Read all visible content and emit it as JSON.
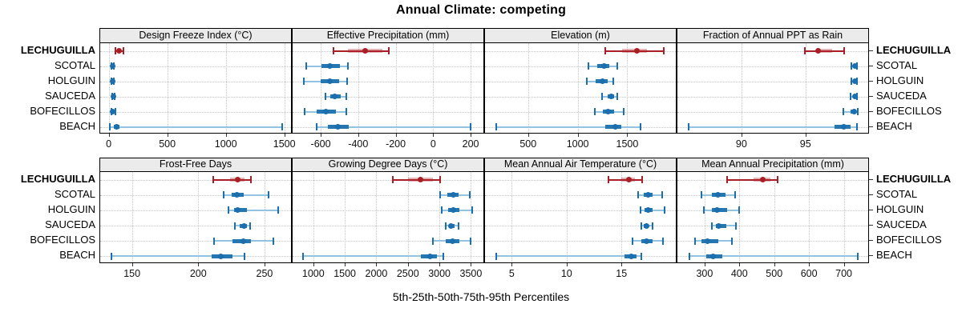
{
  "title": "Annual Climate: competing",
  "caption": "5th-25th-50th-75th-95th Percentiles",
  "categories": [
    "LECHUGUILLA",
    "SCOTAL",
    "HOLGUIN",
    "SAUCEDA",
    "BOFECILLOS",
    "BEACH"
  ],
  "highlighted_category": "LECHUGUILLA",
  "colors": {
    "highlight_solid": "#a82025",
    "highlight_line": "#a82025",
    "highlight_band": "rgba(178,34,43,0.35)",
    "normal_solid": "#1c6fae",
    "normal_line": "#94c2e1",
    "normal_band": "#2577b2",
    "strip_bg": "#ebebeb",
    "grid": "#c6c6c6",
    "border": "#000000",
    "tick": "#333333"
  },
  "chart_data": {
    "type": "dotplot",
    "subtype": "percentile-intervals",
    "percentiles": [
      5,
      25,
      50,
      75,
      95
    ],
    "legend_note": "values per row are [p5, p25, p50, p75, p95]",
    "panels": [
      {
        "title": "Design Freeze Index (°C)",
        "grid_row": 0,
        "grid_col": 0,
        "axis_range": [
          -73,
          1557
        ],
        "ticks": [
          0,
          500,
          1000,
          1500
        ],
        "values": [
          [
            55,
            75,
            89,
            105,
            128
          ],
          [
            24,
            28,
            32,
            36,
            45
          ],
          [
            20,
            26,
            30,
            35,
            45
          ],
          [
            30,
            34,
            38,
            43,
            48
          ],
          [
            22,
            28,
            34,
            42,
            55
          ],
          [
            10,
            45,
            66,
            90,
            1480
          ]
        ]
      },
      {
        "title": "Effective Precipitation (mm)",
        "grid_row": 0,
        "grid_col": 1,
        "axis_range": [
          -750,
          268
        ],
        "ticks": [
          -600,
          -400,
          -200,
          0,
          200
        ],
        "values": [
          [
            -533,
            -457,
            -364,
            -271,
            -237
          ],
          [
            -679,
            -595,
            -550,
            -497,
            -456
          ],
          [
            -691,
            -600,
            -550,
            -500,
            -458
          ],
          [
            -576,
            -548,
            -526,
            -495,
            -462
          ],
          [
            -686,
            -620,
            -573,
            -520,
            -465
          ],
          [
            -621,
            -560,
            -508,
            -450,
            201
          ]
        ]
      },
      {
        "title": "Elevation (m)",
        "grid_row": 0,
        "grid_col": 2,
        "axis_range": [
          65,
          1990
        ],
        "ticks": [
          500,
          1000,
          1500
        ],
        "values": [
          [
            1278,
            1450,
            1594,
            1700,
            1872
          ],
          [
            1112,
            1200,
            1267,
            1320,
            1396
          ],
          [
            1091,
            1180,
            1249,
            1300,
            1358
          ],
          [
            1249,
            1300,
            1339,
            1370,
            1401
          ],
          [
            1177,
            1250,
            1310,
            1370,
            1462
          ],
          [
            179,
            1280,
            1377,
            1440,
            1631
          ]
        ]
      },
      {
        "title": "Fraction of Annual PPT as Rain",
        "grid_row": 0,
        "grid_col": 3,
        "axis_range": [
          85,
          99.9
        ],
        "ticks": [
          90,
          95
        ],
        "values": [
          [
            94.98,
            95.8,
            96.0,
            97.1,
            98.0
          ],
          [
            98.6,
            98.75,
            98.85,
            98.95,
            99.05
          ],
          [
            98.6,
            98.75,
            98.85,
            98.95,
            99.05
          ],
          [
            98.55,
            98.7,
            98.85,
            98.95,
            99.05
          ],
          [
            97.95,
            98.5,
            98.8,
            98.95,
            99.1
          ],
          [
            85.9,
            97.3,
            98.0,
            98.5,
            99.0
          ]
        ]
      },
      {
        "title": "Frost-Free Days",
        "grid_row": 1,
        "grid_col": 0,
        "axis_range": [
          126,
          270
        ],
        "ticks": [
          150,
          200,
          250
        ],
        "values": [
          [
            211.6,
            224,
            230,
            235,
            239.6
          ],
          [
            219.4,
            225,
            229,
            234,
            253
          ],
          [
            222.8,
            227,
            230,
            237,
            260.6
          ],
          [
            227.6,
            231,
            234.4,
            237,
            239
          ],
          [
            212,
            226,
            234,
            240,
            256.4
          ],
          [
            134.4,
            210,
            217,
            226,
            235
          ]
        ]
      },
      {
        "title": "Growing Degree Days (°C)",
        "grid_row": 1,
        "grid_col": 1,
        "axis_range": [
          672,
          3698
        ],
        "ticks": [
          1000,
          1500,
          2000,
          2500,
          3000,
          3500
        ],
        "values": [
          [
            2261,
            2500,
            2702,
            2900,
            3017
          ],
          [
            3017,
            3130,
            3223,
            3310,
            3487
          ],
          [
            3038,
            3140,
            3223,
            3320,
            3521
          ],
          [
            3101,
            3150,
            3184,
            3240,
            3302
          ],
          [
            2903,
            3100,
            3206,
            3320,
            3492
          ],
          [
            836,
            2700,
            2853,
            2960,
            3067
          ]
        ]
      },
      {
        "title": "Mean Annual Air Temperature (°C)",
        "grid_row": 1,
        "grid_col": 2,
        "axis_range": [
          2.56,
          19.95
        ],
        "ticks": [
          5,
          10,
          15
        ],
        "values": [
          [
            13.8,
            15.0,
            15.7,
            16.2,
            16.9
          ],
          [
            16.5,
            17.0,
            17.4,
            17.8,
            18.7
          ],
          [
            16.7,
            17.1,
            17.4,
            17.8,
            18.9
          ],
          [
            16.8,
            17.0,
            17.3,
            17.5,
            17.8
          ],
          [
            16.0,
            16.8,
            17.3,
            17.8,
            18.8
          ],
          [
            3.6,
            15.3,
            15.9,
            16.4,
            16.8
          ]
        ]
      },
      {
        "title": "Mean Annual Precipitation (mm)",
        "grid_row": 1,
        "grid_col": 3,
        "axis_range": [
          222,
          770
        ],
        "ticks": [
          300,
          400,
          500,
          600,
          700
        ],
        "values": [
          [
            365,
            440,
            467,
            490,
            510
          ],
          [
            292,
            320,
            339,
            360,
            388
          ],
          [
            297,
            320,
            337,
            365,
            400
          ],
          [
            322,
            332,
            340,
            362,
            391
          ],
          [
            272,
            292,
            308,
            340,
            379
          ],
          [
            257,
            305,
            324,
            350,
            739
          ]
        ]
      }
    ]
  }
}
